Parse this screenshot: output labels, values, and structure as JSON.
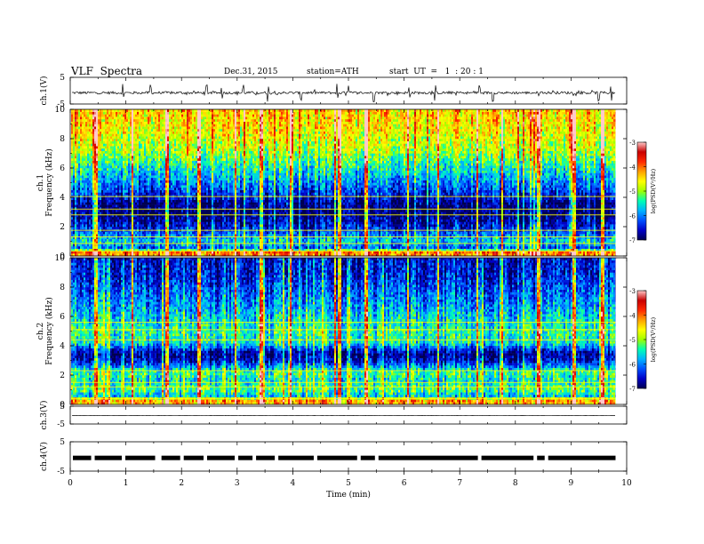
{
  "header": {
    "title": "VLF  Spectra",
    "date": "Dec.31, 2015",
    "station": "station=ATH",
    "start": "start  UT  =   1  : 20 : 1"
  },
  "chart_data": {
    "type": "heatmap",
    "x_axis": {
      "label": "Time  (min)",
      "range": [
        0,
        10
      ],
      "ticks": [
        "0",
        "1",
        "2",
        "3",
        "4",
        "5",
        "6",
        "7",
        "8",
        "9",
        "10"
      ],
      "data_end": 9.8
    },
    "panels": [
      {
        "id": "ch1-wave",
        "kind": "waveform",
        "ylabel": "ch.1(V)",
        "ylim": [
          -5,
          5
        ],
        "yticks": [
          "5",
          "-5"
        ],
        "baseline": -0.8,
        "noise": 0.5,
        "spikes": [
          0.95,
          1.45,
          2.45,
          2.72,
          3.1,
          3.55,
          4.15,
          4.8,
          5.0,
          5.45,
          6.1,
          6.55,
          7.35,
          7.6,
          9.5,
          9.72
        ]
      },
      {
        "id": "ch1-spec",
        "kind": "spectrogram",
        "channel": "ch.1",
        "ylabel": "Frequency  (kHz)",
        "ylim": [
          0,
          10
        ],
        "yticks": [
          "0",
          "2",
          "4",
          "6",
          "8",
          "10"
        ],
        "colorbar": {
          "label": "log(PSD(V²/Hz)",
          "range": [
            -7,
            -3
          ],
          "ticks": [
            "-3",
            "-4",
            "-5",
            "-6",
            "-7"
          ],
          "colors": [
            "#000050",
            "#0000c8",
            "#0050ff",
            "#00b4ff",
            "#00ffb4",
            "#a0ff00",
            "#ffff00",
            "#ffa000",
            "#ff2800",
            "#c80000",
            "#ffc8c8"
          ]
        },
        "band_profile": [
          {
            "f": 0.0,
            "v": -4.2
          },
          {
            "f": 0.3,
            "v": -4.0
          },
          {
            "f": 0.5,
            "v": -6.2
          },
          {
            "f": 1.0,
            "v": -5.6
          },
          {
            "f": 1.4,
            "v": -6.0
          },
          {
            "f": 1.9,
            "v": -6.4
          },
          {
            "f": 2.4,
            "v": -6.7
          },
          {
            "f": 3.0,
            "v": -6.9
          },
          {
            "f": 3.6,
            "v": -6.8
          },
          {
            "f": 4.0,
            "v": -6.5
          },
          {
            "f": 4.6,
            "v": -6.2
          },
          {
            "f": 5.4,
            "v": -5.8
          },
          {
            "f": 6.2,
            "v": -5.4
          },
          {
            "f": 7.0,
            "v": -5.0
          },
          {
            "f": 8.0,
            "v": -4.7
          },
          {
            "f": 9.0,
            "v": -4.5
          },
          {
            "f": 10.0,
            "v": -4.4
          }
        ],
        "lines_khz": [
          0.35,
          0.85,
          1.3,
          1.75,
          2.8,
          3.2,
          4.05
        ],
        "bursts_min": [
          0.45,
          1.1,
          1.72,
          2.3,
          2.95,
          3.42,
          3.95,
          4.75,
          4.82,
          5.3,
          6.05,
          6.6,
          7.3,
          7.75,
          8.4,
          9.05,
          9.55
        ]
      },
      {
        "id": "ch2-spec",
        "kind": "spectrogram",
        "channel": "ch.2",
        "ylabel": "Frequency  (kHz)",
        "ylim": [
          0,
          10
        ],
        "yticks": [
          "0",
          "2",
          "4",
          "6",
          "8",
          "10"
        ],
        "colorbar": {
          "label": "log(PSD(V²/Hz)",
          "range": [
            -7,
            -3
          ],
          "ticks": [
            "-3",
            "-4",
            "-5",
            "-6",
            "-7"
          ],
          "colors": [
            "#000050",
            "#0000c8",
            "#0050ff",
            "#00b4ff",
            "#00ffb4",
            "#a0ff00",
            "#ffff00",
            "#ffa000",
            "#ff2800",
            "#c80000",
            "#ffc8c8"
          ]
        },
        "band_profile": [
          {
            "f": 0.0,
            "v": -4.4
          },
          {
            "f": 0.3,
            "v": -4.2
          },
          {
            "f": 0.6,
            "v": -5.8
          },
          {
            "f": 1.0,
            "v": -5.2
          },
          {
            "f": 1.6,
            "v": -5.6
          },
          {
            "f": 2.2,
            "v": -5.3
          },
          {
            "f": 3.0,
            "v": -6.6
          },
          {
            "f": 3.5,
            "v": -6.8
          },
          {
            "f": 4.2,
            "v": -5.6
          },
          {
            "f": 5.0,
            "v": -5.4
          },
          {
            "f": 6.0,
            "v": -5.7
          },
          {
            "f": 7.0,
            "v": -6.0
          },
          {
            "f": 8.0,
            "v": -6.3
          },
          {
            "f": 9.0,
            "v": -6.5
          },
          {
            "f": 10.0,
            "v": -6.6
          }
        ],
        "lines_khz": [
          0.4,
          1.2,
          1.5,
          2.3,
          4.4,
          5.1,
          5.6
        ],
        "bursts_min": [
          0.45,
          1.1,
          1.72,
          2.3,
          2.95,
          3.42,
          3.95,
          4.75,
          4.82,
          5.3,
          6.05,
          6.6,
          7.3,
          7.75,
          8.4,
          9.05,
          9.55
        ]
      },
      {
        "id": "ch3-wave",
        "kind": "waveform",
        "ylabel": "ch.3(V)",
        "ylim": [
          -5,
          5
        ],
        "yticks": [
          "5",
          "-5"
        ],
        "baseline": -0.3,
        "noise": 0.05,
        "spikes": []
      },
      {
        "id": "ch4-wave",
        "kind": "digital",
        "ylabel": "ch.4(V)",
        "ylim": [
          -5,
          5
        ],
        "yticks": [
          "5",
          "-5"
        ],
        "level": -0.5,
        "gaps_min": [
          0.4,
          0.95,
          1.55,
          1.6,
          2.0,
          2.42,
          2.98,
          3.3,
          3.7,
          4.4,
          5.18,
          5.5,
          7.35,
          8.35,
          8.55
        ]
      }
    ]
  }
}
